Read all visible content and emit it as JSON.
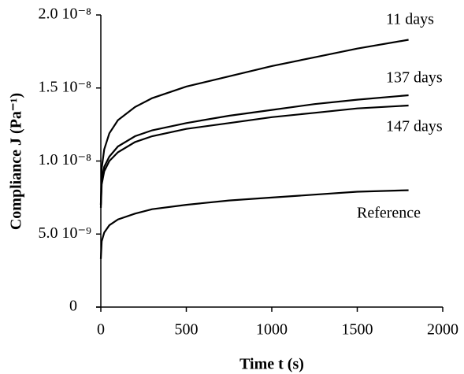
{
  "chart_data": {
    "type": "line",
    "x_label": "Time t (s)",
    "y_label": "Compliance J (Pa⁻¹)",
    "x": [
      0,
      5,
      20,
      50,
      100,
      200,
      300,
      500,
      750,
      1000,
      1250,
      1500,
      1800
    ],
    "series": [
      {
        "name": "11 days",
        "color": "#000000",
        "values": [
          7e-09,
          9.5e-09,
          1.08e-08,
          1.19e-08,
          1.28e-08,
          1.37e-08,
          1.43e-08,
          1.51e-08,
          1.58e-08,
          1.65e-08,
          1.71e-08,
          1.77e-08,
          1.83e-08
        ]
      },
      {
        "name": "137 days",
        "color": "#000000",
        "values": [
          7e-09,
          8.7e-09,
          9.6e-09,
          1.03e-08,
          1.1e-08,
          1.17e-08,
          1.21e-08,
          1.26e-08,
          1.31e-08,
          1.35e-08,
          1.39e-08,
          1.42e-08,
          1.45e-08
        ]
      },
      {
        "name": "147 days",
        "color": "#000000",
        "values": [
          6.8e-09,
          8.4e-09,
          9.3e-09,
          1e-08,
          1.06e-08,
          1.13e-08,
          1.17e-08,
          1.22e-08,
          1.26e-08,
          1.3e-08,
          1.33e-08,
          1.36e-08,
          1.38e-08
        ]
      },
      {
        "name": "Reference",
        "color": "#000000",
        "values": [
          3.3e-09,
          4.5e-09,
          5.1e-09,
          5.6e-09,
          6e-09,
          6.4e-09,
          6.7e-09,
          7e-09,
          7.3e-09,
          7.5e-09,
          7.7e-09,
          7.9e-09,
          8e-09
        ]
      }
    ],
    "xlim": [
      0,
      2000
    ],
    "xticks": [
      0,
      500,
      1000,
      1500,
      2000
    ],
    "ylim": [
      0,
      2e-08
    ],
    "yticks": [
      0,
      {
        "value": 5e-09,
        "label": "5.0 10⁻⁹"
      },
      {
        "value": 1e-08,
        "label": "1.0 10⁻⁸"
      },
      {
        "value": 1.5e-08,
        "label": "1.5 10⁻⁸"
      },
      {
        "value": 2e-08,
        "label": "2.0 10⁻⁸"
      }
    ],
    "grid": false
  }
}
